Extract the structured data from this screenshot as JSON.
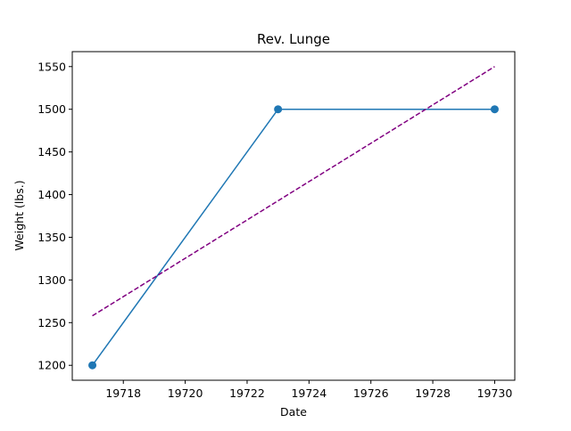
{
  "chart_data": {
    "type": "line",
    "title": "Rev. Lunge",
    "xlabel": "Date",
    "ylabel": "Weight (lbs.)",
    "xlim": [
      19716.35,
      19730.65
    ],
    "ylim": [
      1182.5,
      1567.5
    ],
    "xticks": [
      19718,
      19720,
      19722,
      19724,
      19726,
      19728,
      19730
    ],
    "yticks": [
      1200,
      1250,
      1300,
      1350,
      1400,
      1450,
      1500,
      1550
    ],
    "grid": false,
    "series": [
      {
        "style": "solid-with-markers",
        "color": "#1f77b4",
        "x": [
          19717,
          19723,
          19730
        ],
        "y": [
          1200,
          1500,
          1500
        ]
      },
      {
        "style": "dashed",
        "color": "#800080",
        "x": [
          19717,
          19730
        ],
        "y": [
          1258,
          1550
        ]
      }
    ]
  }
}
